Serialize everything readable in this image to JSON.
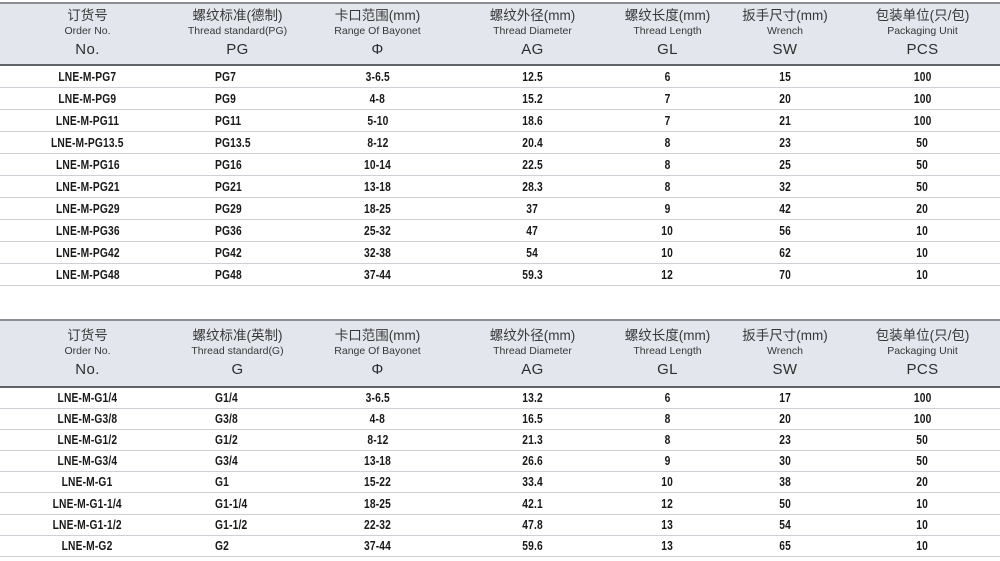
{
  "colors": {
    "header_bg": "#e3e6ec",
    "header_border_top": "#8b8f94",
    "header_border_bottom": "#5f6368",
    "row_divider": "#cdd0d4",
    "value_text": "#191919",
    "header_text": "#383838"
  },
  "column_keys": [
    "order-no",
    "thread-standard",
    "bayonet-range",
    "thread-diameter",
    "thread-length",
    "wrench-size",
    "packaging-unit"
  ],
  "table_pg": {
    "name": "metric-pg-thread-table",
    "columns": [
      {
        "zh": "订货号",
        "en": "Order No.",
        "code": "No."
      },
      {
        "zh": "螺纹标准(德制)",
        "en": "Thread standard(PG)",
        "code": "PG"
      },
      {
        "zh": "卡口范围(mm)",
        "en": "Range Of Bayonet",
        "code": "Φ"
      },
      {
        "zh": "螺纹外径(mm)",
        "en": "Thread Diameter",
        "code": "AG"
      },
      {
        "zh": "螺纹长度(mm)",
        "en": "Thread Length",
        "code": "GL"
      },
      {
        "zh": "扳手尺寸(mm)",
        "en": "Wrench",
        "code": "SW"
      },
      {
        "zh": "包装单位(只/包)",
        "en": "Packaging Unit",
        "code": "PCS"
      }
    ],
    "rows": [
      [
        "LNE-M-PG7",
        "PG7",
        "3-6.5",
        "12.5",
        "6",
        "15",
        "100"
      ],
      [
        "LNE-M-PG9",
        "PG9",
        "4-8",
        "15.2",
        "7",
        "20",
        "100"
      ],
      [
        "LNE-M-PG11",
        "PG11",
        "5-10",
        "18.6",
        "7",
        "21",
        "100"
      ],
      [
        "LNE-M-PG13.5",
        "PG13.5",
        "8-12",
        "20.4",
        "8",
        "23",
        "50"
      ],
      [
        "LNE-M-PG16",
        "PG16",
        "10-14",
        "22.5",
        "8",
        "25",
        "50"
      ],
      [
        "LNE-M-PG21",
        "PG21",
        "13-18",
        "28.3",
        "8",
        "32",
        "50"
      ],
      [
        "LNE-M-PG29",
        "PG29",
        "18-25",
        "37",
        "9",
        "42",
        "20"
      ],
      [
        "LNE-M-PG36",
        "PG36",
        "25-32",
        "47",
        "10",
        "56",
        "10"
      ],
      [
        "LNE-M-PG42",
        "PG42",
        "32-38",
        "54",
        "10",
        "62",
        "10"
      ],
      [
        "LNE-M-PG48",
        "PG48",
        "37-44",
        "59.3",
        "12",
        "70",
        "10"
      ]
    ]
  },
  "table_g": {
    "name": "imperial-g-thread-table",
    "columns": [
      {
        "zh": "订货号",
        "en": "Order No.",
        "code": "No."
      },
      {
        "zh": "螺纹标准(英制)",
        "en": "Thread standard(G)",
        "code": "G"
      },
      {
        "zh": "卡口范围(mm)",
        "en": "Range Of Bayonet",
        "code": "Φ"
      },
      {
        "zh": "螺纹外径(mm)",
        "en": "Thread Diameter",
        "code": "AG"
      },
      {
        "zh": "螺纹长度(mm)",
        "en": "Thread Length",
        "code": "GL"
      },
      {
        "zh": "扳手尺寸(mm)",
        "en": "Wrench",
        "code": "SW"
      },
      {
        "zh": "包装单位(只/包)",
        "en": "Packaging Unit",
        "code": "PCS"
      }
    ],
    "rows": [
      [
        "LNE-M-G1/4",
        "G1/4",
        "3-6.5",
        "13.2",
        "6",
        "17",
        "100"
      ],
      [
        "LNE-M-G3/8",
        "G3/8",
        "4-8",
        "16.5",
        "8",
        "20",
        "100"
      ],
      [
        "LNE-M-G1/2",
        "G1/2",
        "8-12",
        "21.3",
        "8",
        "23",
        "50"
      ],
      [
        "LNE-M-G3/4",
        "G3/4",
        "13-18",
        "26.6",
        "9",
        "30",
        "50"
      ],
      [
        "LNE-M-G1",
        "G1",
        "15-22",
        "33.4",
        "10",
        "38",
        "20"
      ],
      [
        "LNE-M-G1-1/4",
        "G1-1/4",
        "18-25",
        "42.1",
        "12",
        "50",
        "10"
      ],
      [
        "LNE-M-G1-1/2",
        "G1-1/2",
        "22-32",
        "47.8",
        "13",
        "54",
        "10"
      ],
      [
        "LNE-M-G2",
        "G2",
        "37-44",
        "59.6",
        "13",
        "65",
        "10"
      ]
    ]
  }
}
